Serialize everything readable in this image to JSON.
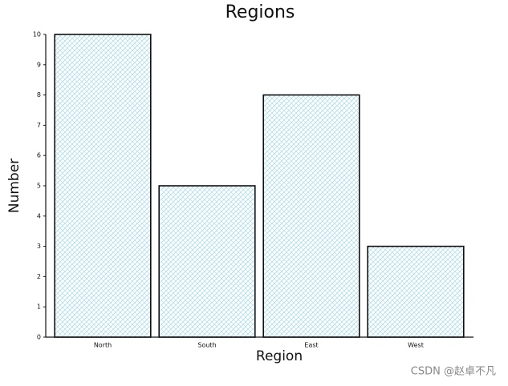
{
  "chart_data": {
    "type": "bar",
    "title": "Regions",
    "x_label": "Region",
    "y_label": "Number",
    "categories": [
      "North",
      "South",
      "East",
      "West"
    ],
    "values": [
      10,
      5,
      8,
      3
    ],
    "color": "#a9dbea",
    "ylim": [
      0,
      10
    ],
    "yticks": [
      0,
      1,
      2,
      3,
      4,
      5,
      6,
      7,
      8,
      9,
      10
    ],
    "grid": false
  },
  "watermark": "CSDN @赵卓不凡"
}
